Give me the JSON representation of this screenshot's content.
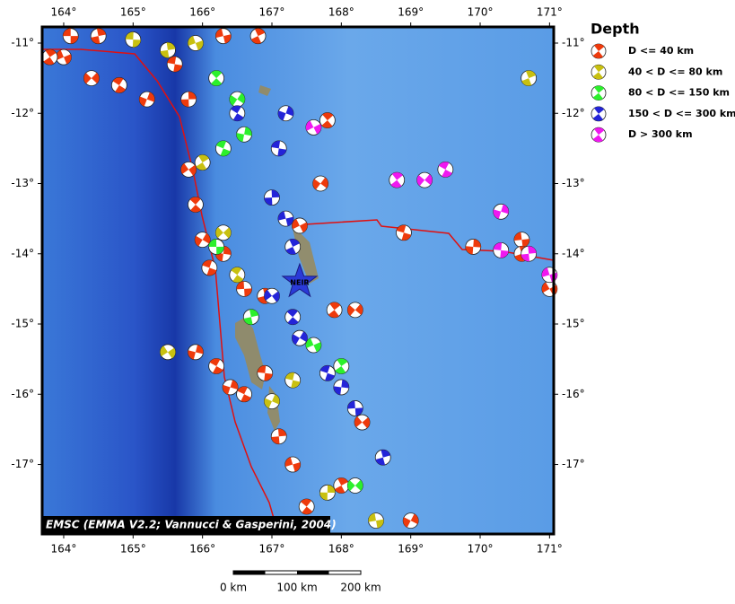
{
  "map": {
    "lon_range": [
      163.69,
      171.06
    ],
    "lat_range": [
      -17.99,
      -10.77
    ],
    "lon_ticks": [
      {
        "value": 164,
        "label": "164°"
      },
      {
        "value": 165,
        "label": "165°"
      },
      {
        "value": 166,
        "label": "166°"
      },
      {
        "value": 167,
        "label": "167°"
      },
      {
        "value": 168,
        "label": "168°"
      },
      {
        "value": 169,
        "label": "169°"
      },
      {
        "value": 170,
        "label": "170°"
      },
      {
        "value": 171,
        "label": "171°"
      }
    ],
    "lat_ticks": [
      {
        "value": -11,
        "label": "-11°"
      },
      {
        "value": -12,
        "label": "-12°"
      },
      {
        "value": -13,
        "label": "-13°"
      },
      {
        "value": -14,
        "label": "-14°"
      },
      {
        "value": -15,
        "label": "-15°"
      },
      {
        "value": -16,
        "label": "-16°"
      },
      {
        "value": -17,
        "label": "-17°"
      }
    ],
    "legend": {
      "title": "Depth",
      "entries": [
        {
          "label": "D <= 40 km",
          "color": "#ee3a0c"
        },
        {
          "label": "40 < D <= 80 km",
          "color": "#c8c010"
        },
        {
          "label": "80 < D <= 150 km",
          "color": "#2cf02c"
        },
        {
          "label": "150 < D <= 300 km",
          "color": "#2424d8"
        },
        {
          "label": "D > 300 km",
          "color": "#f018f0"
        }
      ]
    },
    "credit": "EMSC (EMMA V2.2; Vannucci & Gasperini, 2004)",
    "station": {
      "name": "NEIR",
      "lon": 167.4,
      "lat": -14.4
    },
    "scale_bar": {
      "labels": [
        "0 km",
        "100 km",
        "200 km"
      ]
    },
    "events": [
      {
        "lon": 164.1,
        "lat": -10.9,
        "depth_class": 0
      },
      {
        "lon": 164.5,
        "lat": -10.9,
        "depth_class": 0
      },
      {
        "lon": 164.0,
        "lat": -11.2,
        "depth_class": 0
      },
      {
        "lon": 163.8,
        "lat": -11.2,
        "depth_class": 0
      },
      {
        "lon": 164.4,
        "lat": -11.5,
        "depth_class": 0
      },
      {
        "lon": 164.8,
        "lat": -11.6,
        "depth_class": 0
      },
      {
        "lon": 165.2,
        "lat": -11.8,
        "depth_class": 0
      },
      {
        "lon": 165.6,
        "lat": -11.3,
        "depth_class": 0
      },
      {
        "lon": 165.8,
        "lat": -11.8,
        "depth_class": 0
      },
      {
        "lon": 166.3,
        "lat": -10.9,
        "depth_class": 0
      },
      {
        "lon": 166.8,
        "lat": -10.9,
        "depth_class": 0
      },
      {
        "lon": 165.8,
        "lat": -12.8,
        "depth_class": 0
      },
      {
        "lon": 165.9,
        "lat": -13.3,
        "depth_class": 0
      },
      {
        "lon": 166.0,
        "lat": -13.8,
        "depth_class": 0
      },
      {
        "lon": 166.1,
        "lat": -14.2,
        "depth_class": 0
      },
      {
        "lon": 166.3,
        "lat": -14.0,
        "depth_class": 0
      },
      {
        "lon": 166.6,
        "lat": -14.5,
        "depth_class": 0
      },
      {
        "lon": 166.9,
        "lat": -14.6,
        "depth_class": 0
      },
      {
        "lon": 167.4,
        "lat": -13.6,
        "depth_class": 0
      },
      {
        "lon": 167.9,
        "lat": -14.8,
        "depth_class": 0
      },
      {
        "lon": 168.2,
        "lat": -14.8,
        "depth_class": 0
      },
      {
        "lon": 166.2,
        "lat": -15.6,
        "depth_class": 0
      },
      {
        "lon": 166.4,
        "lat": -15.9,
        "depth_class": 0
      },
      {
        "lon": 166.9,
        "lat": -15.7,
        "depth_class": 0
      },
      {
        "lon": 167.1,
        "lat": -16.6,
        "depth_class": 0
      },
      {
        "lon": 167.3,
        "lat": -17.0,
        "depth_class": 0
      },
      {
        "lon": 168.0,
        "lat": -17.3,
        "depth_class": 0
      },
      {
        "lon": 168.3,
        "lat": -16.4,
        "depth_class": 0
      },
      {
        "lon": 167.5,
        "lat": -17.6,
        "depth_class": 0
      },
      {
        "lon": 169.0,
        "lat": -17.8,
        "depth_class": 0
      },
      {
        "lon": 168.9,
        "lat": -13.7,
        "depth_class": 0
      },
      {
        "lon": 169.9,
        "lat": -13.9,
        "depth_class": 0
      },
      {
        "lon": 170.6,
        "lat": -13.8,
        "depth_class": 0
      },
      {
        "lon": 170.6,
        "lat": -14.0,
        "depth_class": 0
      },
      {
        "lon": 171.0,
        "lat": -14.5,
        "depth_class": 0
      },
      {
        "lon": 167.8,
        "lat": -12.1,
        "depth_class": 0
      },
      {
        "lon": 167.7,
        "lat": -13.0,
        "depth_class": 0
      },
      {
        "lon": 166.6,
        "lat": -16.0,
        "depth_class": 0
      },
      {
        "lon": 165.9,
        "lat": -15.4,
        "depth_class": 0
      },
      {
        "lon": 165.0,
        "lat": -10.95,
        "depth_class": 1
      },
      {
        "lon": 165.5,
        "lat": -11.1,
        "depth_class": 1
      },
      {
        "lon": 165.9,
        "lat": -11.0,
        "depth_class": 1
      },
      {
        "lon": 166.0,
        "lat": -12.7,
        "depth_class": 1
      },
      {
        "lon": 166.3,
        "lat": -13.7,
        "depth_class": 1
      },
      {
        "lon": 166.5,
        "lat": -14.3,
        "depth_class": 1
      },
      {
        "lon": 167.0,
        "lat": -16.1,
        "depth_class": 1
      },
      {
        "lon": 167.3,
        "lat": -15.8,
        "depth_class": 1
      },
      {
        "lon": 167.8,
        "lat": -17.4,
        "depth_class": 1
      },
      {
        "lon": 168.5,
        "lat": -17.8,
        "depth_class": 1
      },
      {
        "lon": 170.7,
        "lat": -11.5,
        "depth_class": 1
      },
      {
        "lon": 165.5,
        "lat": -15.4,
        "depth_class": 1
      },
      {
        "lon": 166.2,
        "lat": -11.5,
        "depth_class": 2
      },
      {
        "lon": 166.5,
        "lat": -11.8,
        "depth_class": 2
      },
      {
        "lon": 166.3,
        "lat": -12.5,
        "depth_class": 2
      },
      {
        "lon": 166.6,
        "lat": -12.3,
        "depth_class": 2
      },
      {
        "lon": 166.2,
        "lat": -13.9,
        "depth_class": 2
      },
      {
        "lon": 166.7,
        "lat": -14.9,
        "depth_class": 2
      },
      {
        "lon": 167.6,
        "lat": -15.3,
        "depth_class": 2
      },
      {
        "lon": 168.0,
        "lat": -15.6,
        "depth_class": 2
      },
      {
        "lon": 168.2,
        "lat": -17.3,
        "depth_class": 2
      },
      {
        "lon": 166.5,
        "lat": -12.0,
        "depth_class": 3
      },
      {
        "lon": 167.2,
        "lat": -12.0,
        "depth_class": 3
      },
      {
        "lon": 167.1,
        "lat": -12.5,
        "depth_class": 3
      },
      {
        "lon": 167.0,
        "lat": -13.2,
        "depth_class": 3
      },
      {
        "lon": 167.2,
        "lat": -13.5,
        "depth_class": 3
      },
      {
        "lon": 167.3,
        "lat": -13.9,
        "depth_class": 3
      },
      {
        "lon": 167.0,
        "lat": -14.6,
        "depth_class": 3
      },
      {
        "lon": 167.3,
        "lat": -14.9,
        "depth_class": 3
      },
      {
        "lon": 167.4,
        "lat": -15.2,
        "depth_class": 3
      },
      {
        "lon": 167.8,
        "lat": -15.7,
        "depth_class": 3
      },
      {
        "lon": 168.0,
        "lat": -15.9,
        "depth_class": 3
      },
      {
        "lon": 168.2,
        "lat": -16.2,
        "depth_class": 3
      },
      {
        "lon": 168.6,
        "lat": -16.9,
        "depth_class": 3
      },
      {
        "lon": 167.6,
        "lat": -12.2,
        "depth_class": 4
      },
      {
        "lon": 168.8,
        "lat": -12.95,
        "depth_class": 4
      },
      {
        "lon": 169.2,
        "lat": -12.95,
        "depth_class": 4
      },
      {
        "lon": 169.5,
        "lat": -12.8,
        "depth_class": 4
      },
      {
        "lon": 170.3,
        "lat": -13.4,
        "depth_class": 4
      },
      {
        "lon": 170.3,
        "lat": -13.95,
        "depth_class": 4
      },
      {
        "lon": 170.7,
        "lat": -14.0,
        "depth_class": 4
      },
      {
        "lon": 171.0,
        "lat": -14.3,
        "depth_class": 4
      }
    ]
  }
}
